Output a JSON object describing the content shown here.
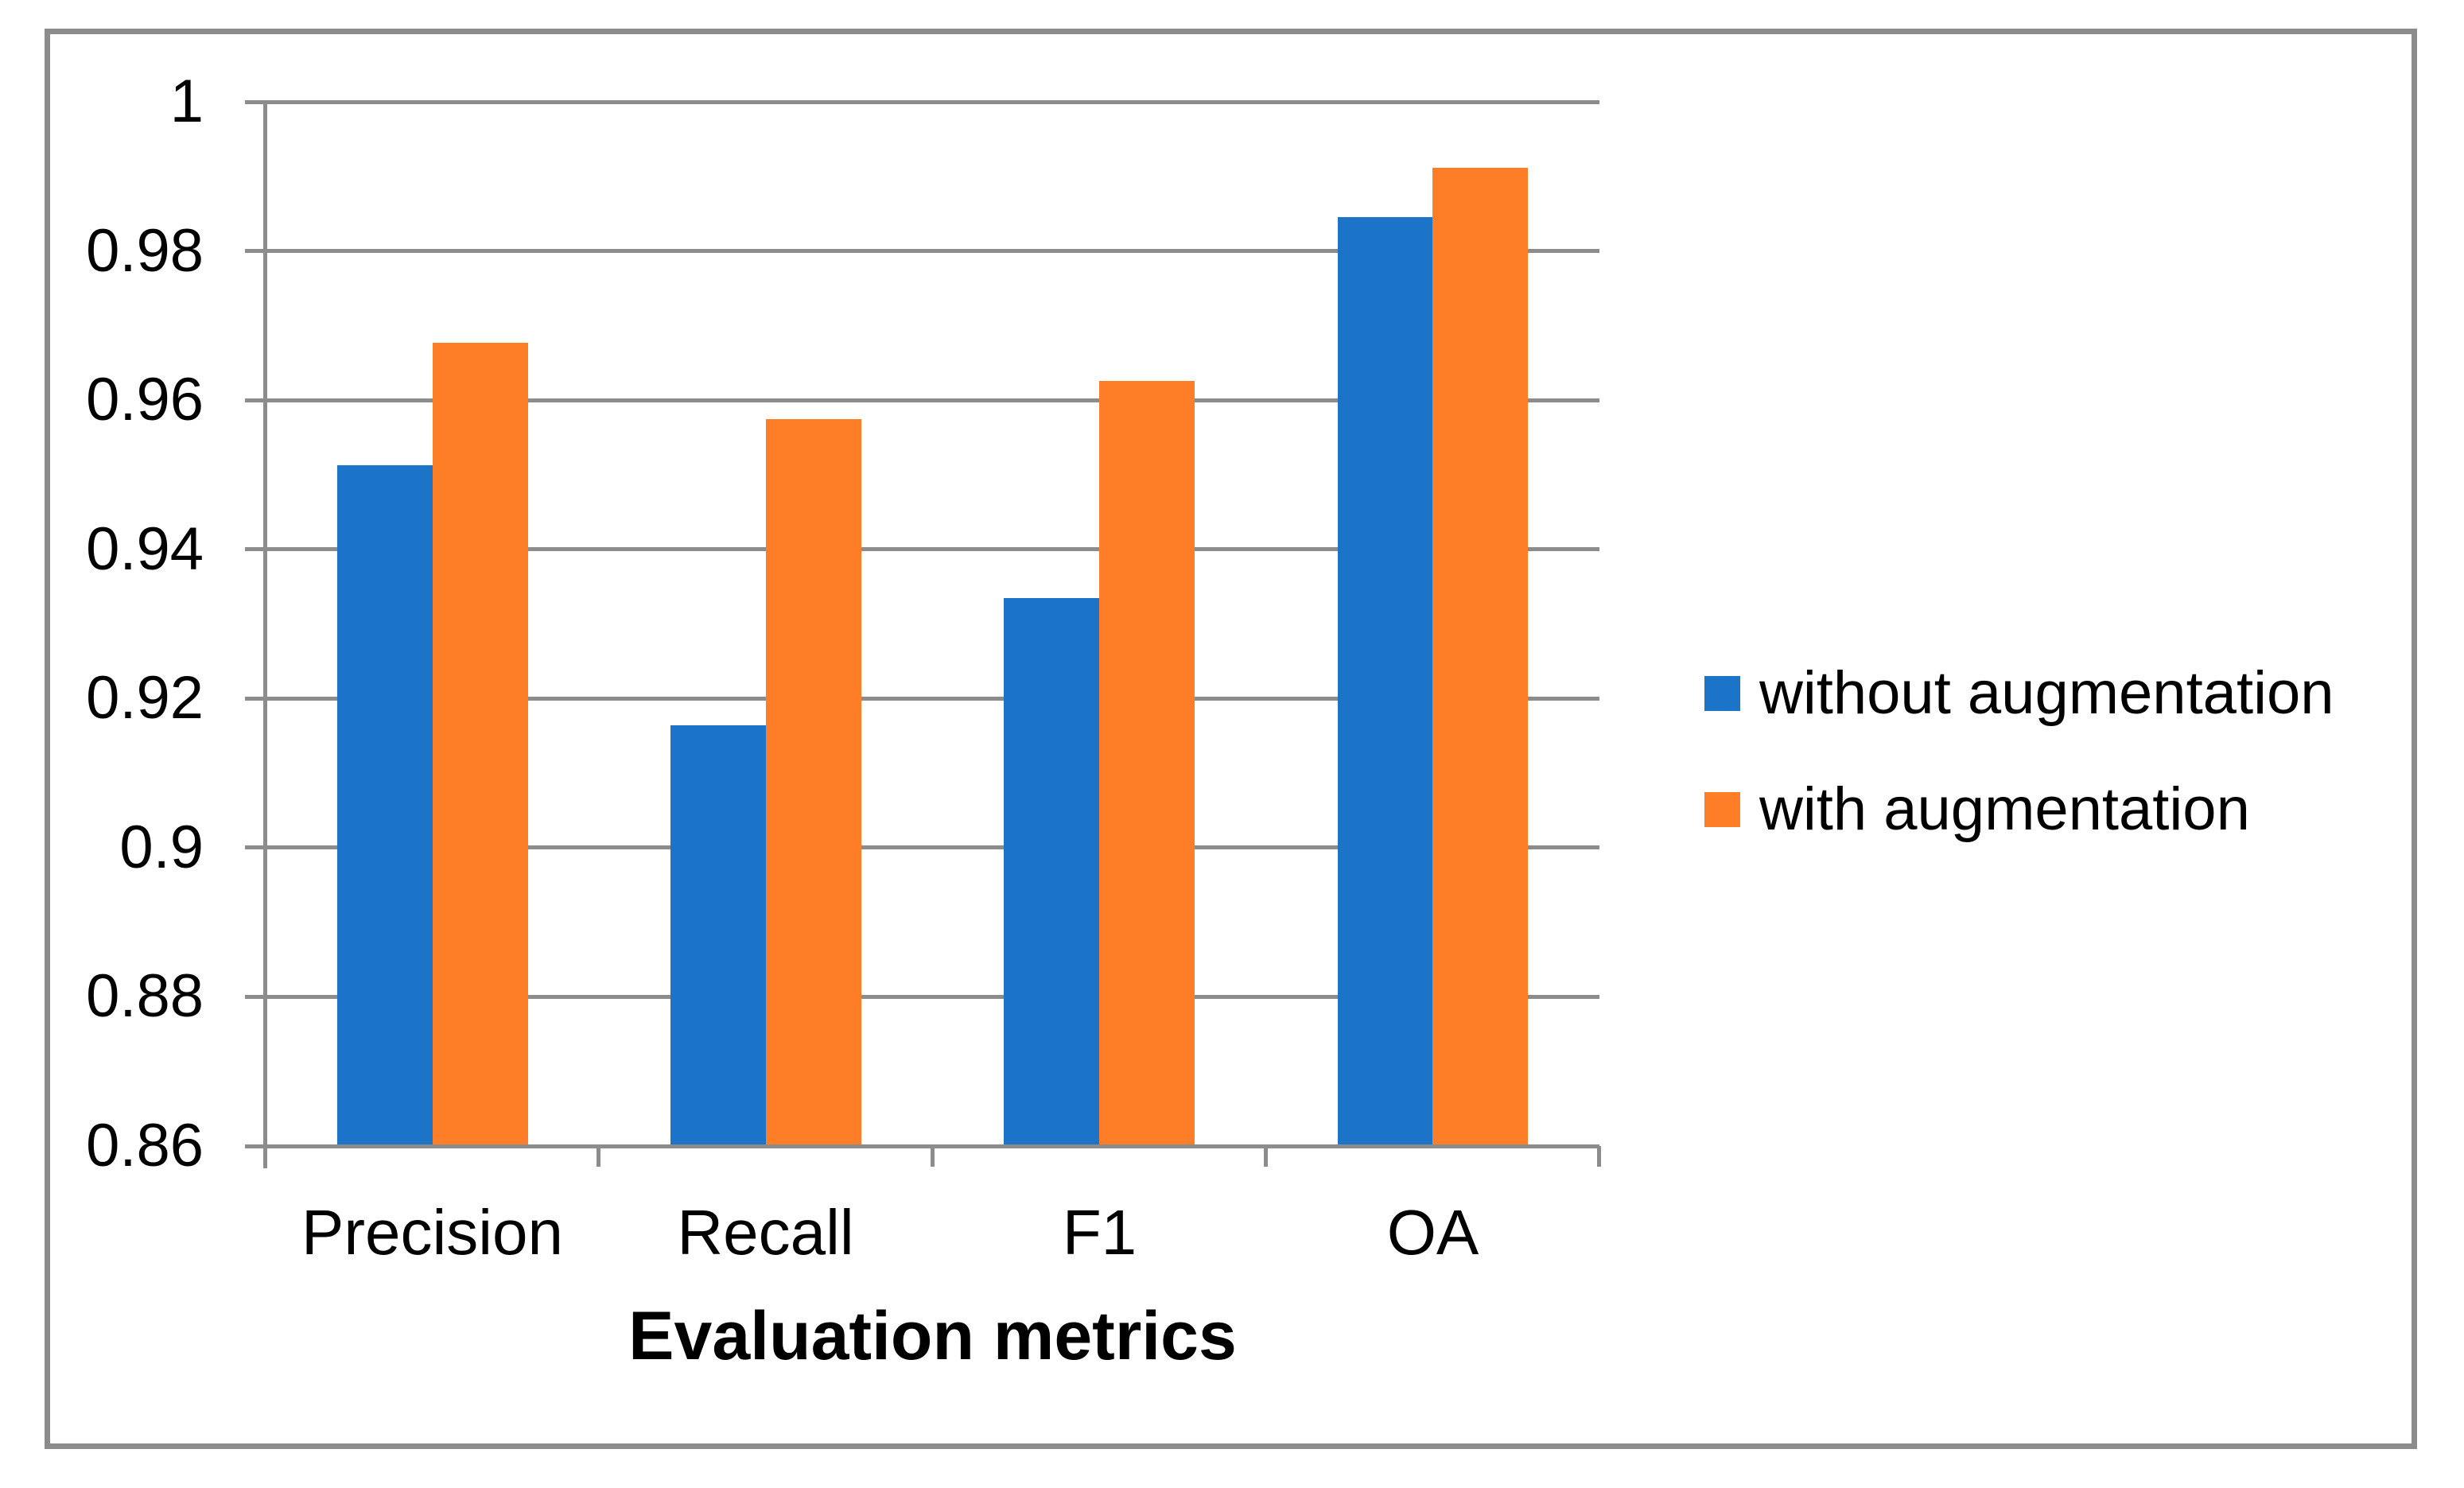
{
  "figure": {
    "kind": "static-chart-figure",
    "border_color": "#8C8C8C",
    "background": "#FFFFFF"
  },
  "chart_data": {
    "type": "bar",
    "title": "",
    "xlabel": "Evaluation metrics",
    "ylabel": "",
    "categories": [
      "Precision",
      "Recall",
      "F1",
      "OA"
    ],
    "series": [
      {
        "name": "without augmentation",
        "color": "#1C74C8",
        "values": [
          0.9513,
          0.9164,
          0.9335,
          0.9845
        ]
      },
      {
        "name": "with augmentation",
        "color": "#FD7E27",
        "values": [
          0.9677,
          0.9575,
          0.9626,
          0.9912
        ]
      }
    ],
    "ylim": [
      0.86,
      1.0
    ],
    "ytick_step": 0.02,
    "ytick_labels": [
      "1",
      "0.98",
      "0.96",
      "0.94",
      "0.92",
      "0.9",
      "0.88",
      "0.86"
    ],
    "grid": true,
    "gridline_color": "#8C8C8C",
    "axis_color": "#8C8C8C",
    "text_color": "#000000",
    "legend_position": "right",
    "gap_width_percent": 150
  }
}
